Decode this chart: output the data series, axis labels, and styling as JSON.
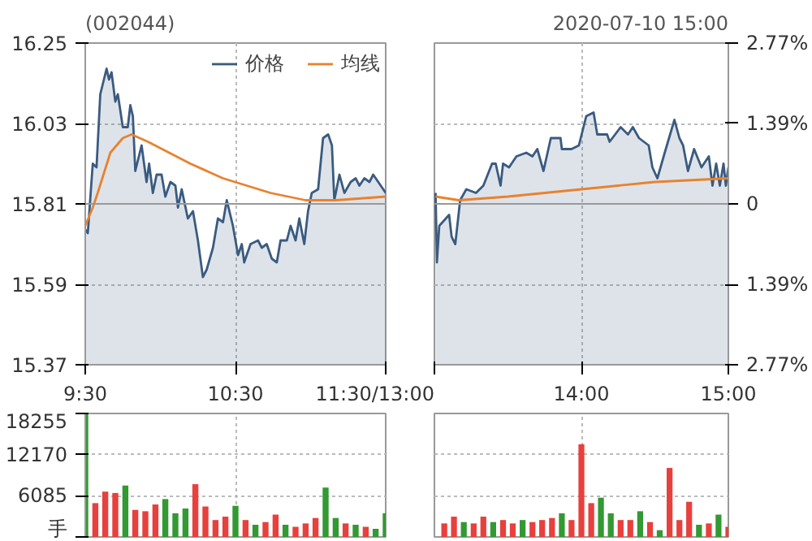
{
  "chart_data": [
    {
      "type": "line",
      "title": "(002044)",
      "legend": "top right",
      "grid": true,
      "marker": "none",
      "line_style": "solid",
      "xlim": [
        9.5,
        11.5
      ],
      "xticks": [
        {
          "value": 9.5,
          "label": "9:30"
        },
        {
          "value": 10.5,
          "label": "10:30"
        },
        {
          "value": 11.5,
          "label": "11:30/13:00"
        }
      ],
      "ylim": [
        15.37,
        16.25
      ],
      "yticks": [
        15.37,
        15.59,
        15.81,
        16.03,
        16.25
      ],
      "ref_lines": [
        {
          "axis": "y",
          "value": 15.81,
          "label": null,
          "color": "#999999"
        }
      ],
      "series": [
        {
          "name": "价格",
          "type": "area",
          "color": "#3a5b80",
          "x": [
            9.5,
            9.517,
            9.55,
            9.575,
            9.6,
            9.642,
            9.658,
            9.675,
            9.7,
            9.717,
            9.75,
            9.783,
            9.8,
            9.817,
            9.833,
            9.875,
            9.908,
            9.925,
            9.95,
            9.975,
            10.008,
            10.033,
            10.067,
            10.1,
            10.117,
            10.142,
            10.183,
            10.217,
            10.25,
            10.283,
            10.308,
            10.35,
            10.383,
            10.417,
            10.442,
            10.483,
            10.517,
            10.542,
            10.558,
            10.6,
            10.65,
            10.675,
            10.708,
            10.742,
            10.775,
            10.8,
            10.842,
            10.867,
            10.9,
            10.925,
            10.958,
            10.983,
            11.008,
            11.05,
            11.083,
            11.117,
            11.142,
            11.158,
            11.192,
            11.225,
            11.267,
            11.3,
            11.325,
            11.358,
            11.392,
            11.417,
            11.467,
            11.5
          ],
          "values": [
            15.74,
            15.73,
            15.92,
            15.91,
            16.11,
            16.18,
            16.15,
            16.17,
            16.09,
            16.11,
            16.02,
            16.02,
            16.08,
            16.05,
            15.9,
            15.97,
            15.87,
            15.92,
            15.84,
            15.89,
            15.89,
            15.83,
            15.87,
            15.86,
            15.8,
            15.85,
            15.77,
            15.79,
            15.71,
            15.61,
            15.63,
            15.69,
            15.77,
            15.76,
            15.82,
            15.75,
            15.67,
            15.7,
            15.65,
            15.7,
            15.71,
            15.69,
            15.7,
            15.66,
            15.65,
            15.71,
            15.71,
            15.75,
            15.71,
            15.77,
            15.7,
            15.79,
            15.84,
            15.85,
            15.99,
            16.0,
            15.97,
            15.82,
            15.89,
            15.84,
            15.87,
            15.88,
            15.86,
            15.88,
            15.87,
            15.89,
            15.86,
            15.84
          ]
        },
        {
          "name": "均线",
          "type": "line",
          "color": "#e8822e",
          "x": [
            9.5,
            9.55,
            9.583,
            9.667,
            9.75,
            9.808,
            9.917,
            10.2,
            10.417,
            10.733,
            10.967,
            11.167,
            11.5
          ],
          "values": [
            15.75,
            15.8,
            15.84,
            15.95,
            15.99,
            16.0,
            15.98,
            15.92,
            15.88,
            15.84,
            15.82,
            15.82,
            15.83
          ]
        }
      ]
    },
    {
      "type": "line",
      "subtitle": "2020-07-10 15:00",
      "grid": true,
      "marker": "none",
      "line_style": "solid",
      "tick_labels": "x",
      "xlim": [
        13,
        15
      ],
      "xticks": [
        {
          "value": 13,
          "label": null
        },
        {
          "value": 14,
          "label": "14:00"
        },
        {
          "value": 15,
          "label": "15:00"
        }
      ],
      "ylim": [
        15.37,
        16.25
      ],
      "yticks": [
        15.37,
        15.59,
        15.81,
        16.03,
        16.25
      ],
      "y2lim": [
        -2.77,
        2.77
      ],
      "y2ticks": [
        {
          "value": -2.77,
          "label": "2.77%"
        },
        {
          "value": -1.39,
          "label": "1.39%"
        },
        {
          "value": 0,
          "label": "0"
        },
        {
          "value": 1.39,
          "label": "1.39%"
        },
        {
          "value": 2.77,
          "label": "2.77%"
        }
      ],
      "ref_lines": [
        {
          "axis": "y",
          "value": 15.81,
          "label": null,
          "color": "#999999"
        }
      ],
      "series": [
        {
          "type": "area",
          "color": "#3a5b80",
          "x": [
            13.008,
            13.017,
            13.033,
            13.1,
            13.117,
            13.142,
            13.175,
            13.217,
            13.283,
            13.333,
            13.392,
            13.417,
            13.45,
            13.467,
            13.508,
            13.558,
            13.625,
            13.667,
            13.7,
            13.742,
            13.792,
            13.858,
            13.867,
            13.933,
            13.983,
            14.033,
            14.083,
            14.108,
            14.175,
            14.192,
            14.267,
            14.317,
            14.35,
            14.392,
            14.458,
            14.483,
            14.517,
            14.567,
            14.633,
            14.667,
            14.692,
            14.725,
            14.767,
            14.817,
            14.867,
            14.892,
            14.917,
            14.942,
            14.967,
            14.983,
            15
          ],
          "values": [
            15.84,
            15.65,
            15.75,
            15.78,
            15.72,
            15.7,
            15.82,
            15.85,
            15.84,
            15.86,
            15.92,
            15.92,
            15.86,
            15.92,
            15.91,
            15.94,
            15.95,
            15.94,
            15.96,
            15.9,
            15.99,
            15.99,
            15.96,
            15.96,
            15.97,
            16.05,
            16.06,
            16.0,
            16.0,
            15.98,
            16.02,
            16.0,
            16.02,
            15.99,
            15.97,
            15.91,
            15.88,
            15.95,
            16.04,
            15.99,
            15.97,
            15.9,
            15.96,
            15.91,
            15.94,
            15.86,
            15.92,
            15.86,
            15.92,
            15.86,
            15.91
          ]
        },
        {
          "type": "line",
          "color": "#e8822e",
          "x": [
            13.008,
            13.167,
            13.5,
            14,
            14.5,
            15
          ],
          "values": [
            15.83,
            15.82,
            15.83,
            15.85,
            15.87,
            15.88
          ]
        }
      ]
    },
    {
      "type": "bar",
      "grid": true,
      "tick_labels": "y",
      "xlim": [
        9.5,
        11.5
      ],
      "xticks": [
        9.5,
        10.5,
        11.5
      ],
      "ylim": [
        0,
        18255
      ],
      "yticks": [
        {
          "value": 0,
          "label": "手"
        },
        6085,
        12170,
        18255
      ],
      "x": [
        9.5,
        9.567,
        9.633,
        9.7,
        9.767,
        9.833,
        9.9,
        9.967,
        10.033,
        10.1,
        10.167,
        10.233,
        10.3,
        10.367,
        10.433,
        10.5,
        10.567,
        10.633,
        10.7,
        10.767,
        10.833,
        10.9,
        10.967,
        11.033,
        11.1,
        11.167,
        11.233,
        11.3,
        11.367,
        11.433,
        11.5
      ],
      "values": [
        18200,
        5000,
        6700,
        6500,
        7600,
        4000,
        3800,
        4800,
        5600,
        3500,
        4200,
        7800,
        4500,
        2500,
        3000,
        4600,
        2500,
        1800,
        2200,
        3300,
        1800,
        1500,
        2000,
        2800,
        7300,
        2800,
        2000,
        1800,
        1500,
        1200,
        3500
      ],
      "colors": [
        "#339933",
        "#e8403c",
        "#e8403c",
        "#e8403c",
        "#339933",
        "#e8403c",
        "#e8403c",
        "#e8403c",
        "#339933",
        "#339933",
        "#339933",
        "#e8403c",
        "#e8403c",
        "#e8403c",
        "#e8403c",
        "#339933",
        "#e8403c",
        "#339933",
        "#e8403c",
        "#e8403c",
        "#339933",
        "#e8403c",
        "#e8403c",
        "#e8403c",
        "#339933",
        "#339933",
        "#e8403c",
        "#339933",
        "#e8403c",
        "#339933",
        "#339933"
      ]
    },
    {
      "type": "bar",
      "grid": true,
      "tick_labels": false,
      "xlim": [
        13,
        15
      ],
      "xticks": [
        13,
        14,
        15
      ],
      "ylim": [
        0,
        18255
      ],
      "yticks": [
        0,
        6085,
        12170,
        18255
      ],
      "x": [
        13.067,
        13.133,
        13.2,
        13.267,
        13.333,
        13.4,
        13.467,
        13.533,
        13.6,
        13.667,
        13.733,
        13.8,
        13.867,
        13.933,
        14,
        14.067,
        14.133,
        14.2,
        14.267,
        14.333,
        14.4,
        14.467,
        14.533,
        14.6,
        14.667,
        14.733,
        14.8,
        14.867,
        14.933,
        15
      ],
      "values": [
        2000,
        3000,
        2200,
        2000,
        3000,
        2200,
        2500,
        2000,
        2500,
        2200,
        2500,
        2800,
        3500,
        2500,
        13700,
        5000,
        5800,
        3500,
        2500,
        2500,
        3800,
        2200,
        1000,
        10200,
        2500,
        5200,
        1800,
        2000,
        3300,
        1500
      ],
      "colors": [
        "#e8403c",
        "#e8403c",
        "#339933",
        "#e8403c",
        "#e8403c",
        "#339933",
        "#e8403c",
        "#e8403c",
        "#339933",
        "#e8403c",
        "#e8403c",
        "#e8403c",
        "#339933",
        "#e8403c",
        "#e8403c",
        "#e8403c",
        "#339933",
        "#339933",
        "#e8403c",
        "#e8403c",
        "#339933",
        "#e8403c",
        "#339933",
        "#e8403c",
        "#e8403c",
        "#e8403c",
        "#339933",
        "#e8403c",
        "#339933",
        "#e8403c"
      ]
    }
  ]
}
